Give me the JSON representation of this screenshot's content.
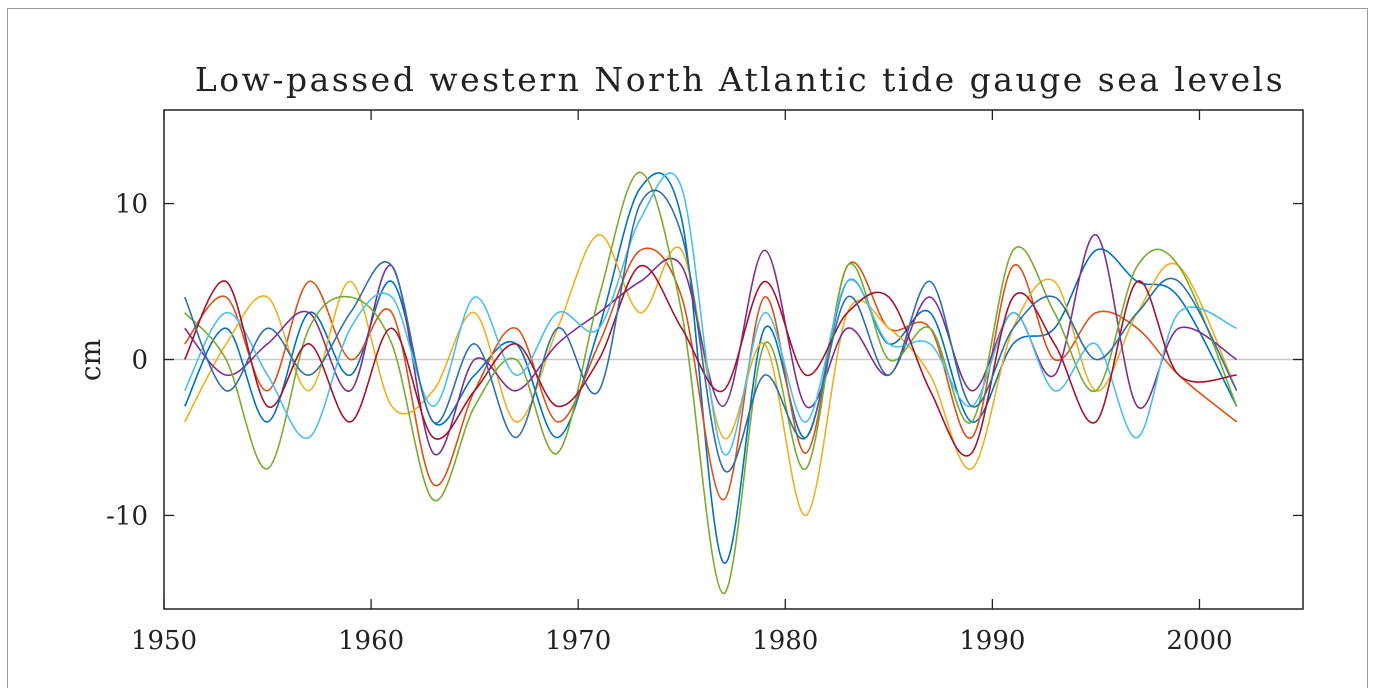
{
  "chart_data": {
    "type": "line",
    "title": "Low-passed western North Atlantic tide gauge sea levels",
    "xlabel": "",
    "ylabel": "cm",
    "xlim": [
      1950,
      2005
    ],
    "ylim": [
      -16,
      16
    ],
    "xticks": [
      1950,
      1960,
      1970,
      1980,
      1990,
      2000
    ],
    "yticks": [
      -10,
      0,
      10
    ],
    "grid": false,
    "legend": "none",
    "zero_line": true,
    "palette": [
      "#0072bd",
      "#d95319",
      "#edb120",
      "#7e2f8e",
      "#77ac30",
      "#4dbeee",
      "#a2142f",
      "#2e6fa8",
      "#c9b83e",
      "#c34a8f",
      "#4a7a6a",
      "#e02020",
      "#1ea0c8",
      "#5b6f64"
    ],
    "series": [
      {
        "x": [
          1951,
          1953,
          1955,
          1957,
          1959,
          1961,
          1963,
          1965,
          1967,
          1969,
          1971,
          1973,
          1975,
          1977,
          1979,
          1981,
          1983,
          1985,
          1987,
          1989,
          1991,
          1993,
          1995,
          1997,
          1999,
          2001.8
        ],
        "values": [
          -3,
          2,
          -4,
          3,
          -1,
          5,
          -4,
          -1,
          1,
          -5,
          2,
          11,
          9,
          -13,
          2,
          -5,
          5,
          1,
          3,
          -4,
          1,
          2,
          7,
          5,
          4,
          -3
        ]
      },
      {
        "x": [
          1951,
          1953,
          1955,
          1957,
          1959,
          1961,
          1963,
          1965,
          1967,
          1969,
          1971,
          1973,
          1975,
          1977,
          1979,
          1981,
          1983,
          1985,
          1987,
          1989,
          1991,
          1993,
          1995,
          1997,
          1999,
          2001.8
        ],
        "values": [
          1,
          4,
          -2,
          5,
          0,
          3,
          -8,
          -2,
          2,
          -4,
          1,
          7,
          4,
          -9,
          4,
          -6,
          6,
          2,
          2,
          -5,
          6,
          0,
          3,
          2,
          -1,
          -4
        ]
      },
      {
        "x": [
          1951,
          1953,
          1955,
          1957,
          1959,
          1961,
          1963,
          1965,
          1967,
          1969,
          1971,
          1973,
          1975,
          1977,
          1979,
          1981,
          1983,
          1985,
          1987,
          1989,
          1991,
          1993,
          1995,
          1997,
          1999,
          2001.8
        ],
        "values": [
          -4,
          1,
          4,
          -2,
          5,
          -3,
          -2,
          3,
          -4,
          2,
          8,
          3,
          7,
          -5,
          1,
          -10,
          3,
          2,
          -1,
          -7,
          2,
          5,
          -2,
          3,
          6,
          -2
        ]
      },
      {
        "x": [
          1951,
          1953,
          1955,
          1957,
          1959,
          1961,
          1963,
          1965,
          1967,
          1969,
          1971,
          1973,
          1975,
          1977,
          1979,
          1981,
          1983,
          1985,
          1987,
          1989,
          1991,
          1993,
          1995,
          1997,
          1999,
          2001.8
        ],
        "values": [
          2,
          -1,
          1,
          3,
          -2,
          6,
          -6,
          0,
          -2,
          1,
          3,
          5,
          6,
          -3,
          7,
          -3,
          2,
          -1,
          4,
          -2,
          3,
          -1,
          8,
          -3,
          2,
          0
        ]
      },
      {
        "x": [
          1951,
          1953,
          1955,
          1957,
          1959,
          1961,
          1963,
          1965,
          1967,
          1969,
          1971,
          1973,
          1975,
          1977,
          1979,
          1981,
          1983,
          1985,
          1987,
          1989,
          1991,
          1993,
          1995,
          1997,
          1999,
          2001.8
        ],
        "values": [
          3,
          0,
          -7,
          2,
          4,
          1,
          -9,
          -3,
          0,
          -6,
          4,
          12,
          3,
          -15,
          1,
          -7,
          6,
          0,
          2,
          -4,
          7,
          3,
          -2,
          6,
          6,
          -3
        ]
      },
      {
        "x": [
          1951,
          1953,
          1955,
          1957,
          1959,
          1961,
          1963,
          1965,
          1967,
          1969,
          1971,
          1973,
          1975,
          1977,
          1979,
          1981,
          1983,
          1985,
          1987,
          1989,
          1991,
          1993,
          1995,
          1997,
          1999,
          2001.8
        ],
        "values": [
          -2,
          3,
          -1,
          -5,
          2,
          4,
          -3,
          4,
          -1,
          3,
          2,
          9,
          11,
          -6,
          3,
          -4,
          5,
          1,
          1,
          -3,
          3,
          -2,
          1,
          -5,
          3,
          2
        ]
      },
      {
        "x": [
          1951,
          1953,
          1955,
          1957,
          1959,
          1961,
          1963,
          1965,
          1967,
          1969,
          1971,
          1973,
          1975,
          1977,
          1979,
          1981,
          1983,
          1985,
          1987,
          1989,
          1991,
          1993,
          1995,
          1997,
          1999,
          2001.8
        ],
        "values": [
          0,
          5,
          -3,
          1,
          -4,
          2,
          -5,
          -2,
          1,
          -3,
          0,
          6,
          2,
          -2,
          5,
          -1,
          3,
          4,
          -2,
          -6,
          4,
          1,
          -4,
          5,
          -1,
          -1
        ]
      },
      {
        "x": [
          1951,
          1953,
          1955,
          1957,
          1959,
          1961,
          1963,
          1965,
          1967,
          1969,
          1971,
          1973,
          1975,
          1977,
          1979,
          1981,
          1983,
          1985,
          1987,
          1989,
          1991,
          1993,
          1995,
          1997,
          1999,
          2001.8
        ],
        "values": [
          4,
          -2,
          2,
          -1,
          3,
          6,
          -4,
          1,
          -5,
          2,
          -2,
          10,
          8,
          -7,
          -1,
          -5,
          4,
          -1,
          5,
          -3,
          2,
          4,
          0,
          3,
          5,
          -2
        ]
      }
    ]
  }
}
